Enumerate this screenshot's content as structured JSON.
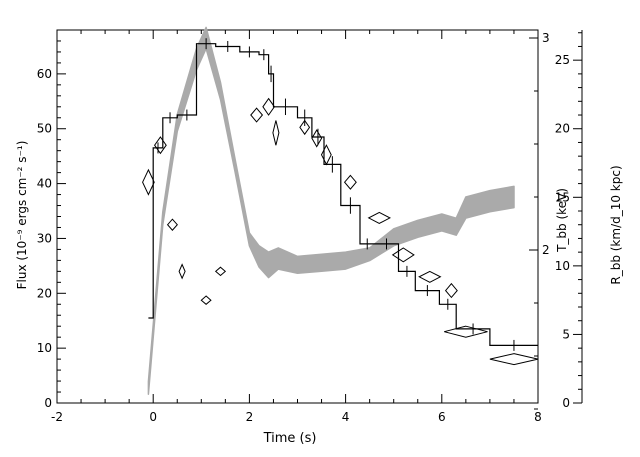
{
  "chart_data": {
    "type": "line",
    "title": "",
    "xlabel": "Time (s)",
    "xlim": [
      -2,
      8
    ],
    "x_ticks": [
      -2,
      0,
      2,
      4,
      6,
      8
    ],
    "ylabel_left": "Flux (10⁻⁹ ergs cm⁻² s⁻¹)",
    "ylim_left": [
      0,
      68
    ],
    "y_ticks_left": [
      0,
      10,
      20,
      30,
      40,
      50,
      60
    ],
    "ylabel_right_inner": "T_bb (keV)",
    "y_ticks_right_inner": [
      2,
      3
    ],
    "ylabel_right_outer": "R_bb (km/d_10 kpc)",
    "ylim_right_outer": [
      0,
      27.2
    ],
    "y_ticks_right_outer": [
      0,
      5,
      10,
      15,
      20,
      25
    ],
    "grid": false,
    "series": [
      {
        "style": "step",
        "color": "#000000",
        "axis": "flux",
        "edges": [
          -0.1,
          0.0,
          0.2,
          0.5,
          0.9,
          1.3,
          1.8,
          2.2,
          2.4,
          2.5,
          3.0,
          3.3,
          3.55,
          3.9,
          4.3,
          4.6,
          5.1,
          5.45,
          5.95,
          6.3,
          7.0,
          8.0
        ],
        "values": [
          15.5,
          46.5,
          52.0,
          52.5,
          65.5,
          65.0,
          64.0,
          63.5,
          60.0,
          54.0,
          52.0,
          48.5,
          43.5,
          36.0,
          29.0,
          29.0,
          24.0,
          20.5,
          18.0,
          13.5,
          10.5
        ],
        "errors": [
          0,
          1,
          1,
          1,
          1,
          1,
          1,
          1,
          1.5,
          1.5,
          1.5,
          1.5,
          1.5,
          1.5,
          1,
          1,
          1,
          1,
          1,
          1,
          1
        ]
      },
      {
        "style": "diamond",
        "color": "#000000",
        "axis": "radius",
        "x": [
          -0.1,
          0.15,
          0.4,
          0.6,
          1.1,
          1.4,
          2.15,
          2.4,
          2.55,
          3.15,
          3.4,
          3.6,
          4.1,
          4.7,
          5.2,
          5.75,
          6.2,
          6.5,
          7.5
        ],
        "y": [
          16.1,
          18.8,
          13.0,
          9.6,
          7.5,
          9.6,
          21.0,
          21.6,
          19.7,
          20.1,
          19.3,
          18.1,
          16.1,
          13.5,
          10.8,
          9.2,
          8.2,
          5.2,
          3.2
        ],
        "x_err": [
          0.12,
          0.12,
          0.1,
          0.05,
          0.1,
          0.1,
          0.12,
          0.12,
          0.05,
          0.1,
          0.1,
          0.1,
          0.12,
          0.22,
          0.22,
          0.22,
          0.12,
          0.45,
          0.5
        ],
        "y_err": [
          0.9,
          0.6,
          0.4,
          0.5,
          0.3,
          0.3,
          0.5,
          0.6,
          0.9,
          0.5,
          0.6,
          0.7,
          0.5,
          0.4,
          0.5,
          0.4,
          0.5,
          0.4,
          0.4
        ]
      },
      {
        "style": "band",
        "color": "#aaaaaa",
        "axis": "temperature",
        "x": [
          -0.1,
          0.2,
          0.5,
          0.9,
          1.1,
          1.4,
          1.7,
          2.0,
          2.2,
          2.4,
          2.6,
          3.0,
          3.5,
          4.0,
          4.5,
          5.0,
          5.5,
          6.0,
          6.3,
          6.5,
          7.0,
          7.5
        ],
        "y": [
          1.35,
          2.15,
          2.6,
          2.9,
          3.0,
          2.75,
          2.4,
          2.05,
          1.97,
          1.93,
          1.96,
          1.93,
          1.94,
          1.95,
          1.98,
          2.06,
          2.1,
          2.13,
          2.11,
          2.2,
          2.23,
          2.25
        ],
        "widths": [
          0.03,
          0.03,
          0.04,
          0.05,
          0.05,
          0.04,
          0.03,
          0.03,
          0.05,
          0.06,
          0.05,
          0.04,
          0.04,
          0.04,
          0.03,
          0.04,
          0.04,
          0.04,
          0.04,
          0.05,
          0.05,
          0.05
        ]
      }
    ]
  }
}
